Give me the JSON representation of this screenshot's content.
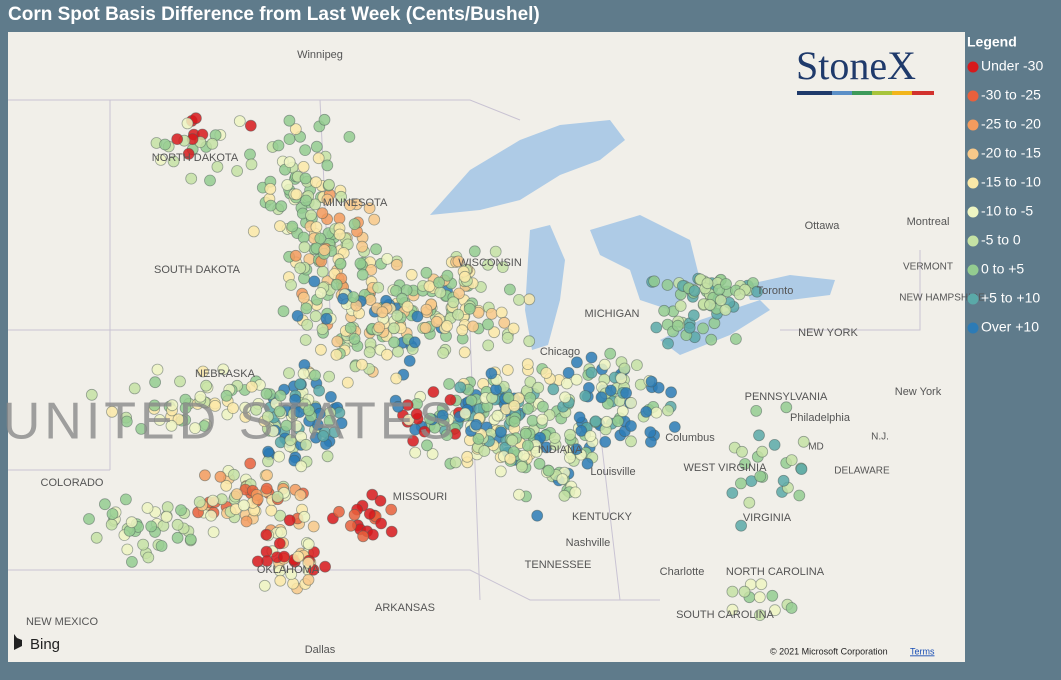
{
  "header": {
    "title": "Corn Spot Basis Difference from Last Week (Cents/Bushel)"
  },
  "legend": {
    "title": "Legend",
    "items": [
      {
        "label": "Under -30",
        "color": "#d7191c"
      },
      {
        "label": "-30 to -25",
        "color": "#e8603c"
      },
      {
        "label": "-25 to -20",
        "color": "#f39b5e"
      },
      {
        "label": "-20 to -15",
        "color": "#f8c98a"
      },
      {
        "label": "-15 to -10",
        "color": "#fbe9a8"
      },
      {
        "label": "-10 to -5",
        "color": "#eef5c2"
      },
      {
        "label": "-5 to 0",
        "color": "#c5e2a4"
      },
      {
        "label": "0 to +5",
        "color": "#94cc90"
      },
      {
        "label": "+5 to +10",
        "color": "#5aa9a8"
      },
      {
        "label": "Over +10",
        "color": "#2c7bb6"
      }
    ]
  },
  "map": {
    "place_labels": [
      "Winnipeg",
      "NORTH DAKOTA",
      "MINNESOTA",
      "SOUTH DAKOTA",
      "NEBRASKA",
      "UNITED STATES",
      "COLORADO",
      "MISSOURI",
      "KENTUCKY",
      "TENNESSEE",
      "OKLAHOMA",
      "ARKANSAS",
      "NEW MEXICO",
      "Dallas",
      "Nashville",
      "Louisville",
      "Chicago",
      "INDIANA",
      "Columbus",
      "WEST VIRGINIA",
      "VIRGINIA",
      "NORTH CAROLINA",
      "SOUTH CAROLINA",
      "Charlotte",
      "PENNSYLVANIA",
      "Philadelphia",
      "NEW YORK",
      "New York",
      "Toronto",
      "Ottawa",
      "Montreal",
      "VERMONT",
      "NEW HAMPSHIRE",
      "DELAWARE",
      "MD",
      "N.J.",
      "MICHIGAN",
      "WISCONSIN"
    ],
    "logo": "StoneX",
    "provider": "Bing",
    "attribution": "© 2021 Microsoft Corporation",
    "terms": "Terms"
  }
}
